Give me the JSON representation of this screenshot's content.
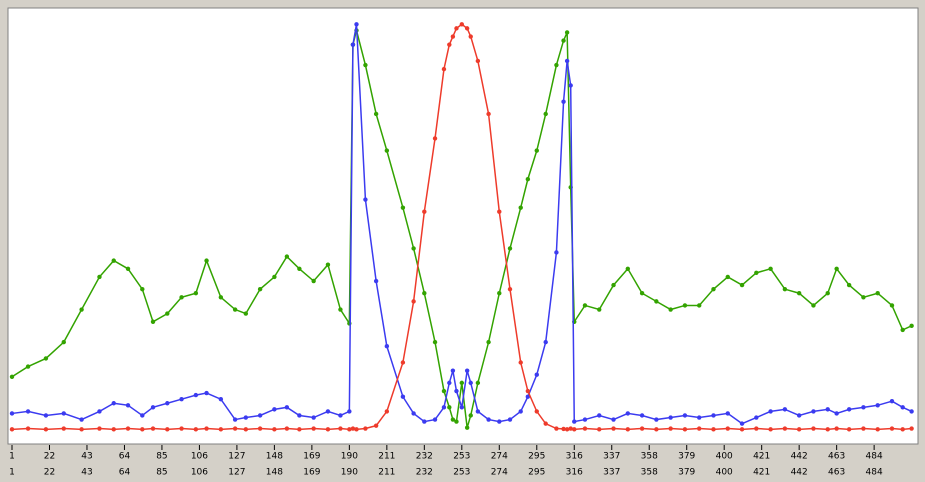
{
  "chart_data": {
    "type": "line",
    "x": [
      1,
      10,
      20,
      30,
      40,
      50,
      58,
      66,
      74,
      80,
      88,
      96,
      104,
      110,
      118,
      126,
      132,
      140,
      148,
      155,
      162,
      170,
      178,
      185,
      190,
      192,
      194,
      199,
      205,
      211,
      220,
      226,
      232,
      238,
      243,
      246,
      248,
      250,
      253,
      256,
      258,
      262,
      268,
      274,
      280,
      286,
      290,
      295,
      300,
      306,
      310,
      312,
      314,
      316,
      322,
      330,
      338,
      346,
      354,
      362,
      370,
      378,
      386,
      394,
      402,
      410,
      418,
      426,
      434,
      442,
      450,
      458,
      463,
      470,
      478,
      486,
      494,
      500,
      505
    ],
    "series": [
      {
        "color": "#33a300",
        "values": [
          13.5,
          16,
          18,
          22,
          30,
          38,
          42,
          40,
          35,
          27,
          29,
          33,
          34,
          42,
          33,
          30,
          29,
          35,
          38,
          43,
          40,
          37,
          41,
          30,
          26.6,
          95,
          98.5,
          90,
          78,
          69,
          55,
          45,
          34,
          22,
          10,
          6,
          3,
          2.5,
          12,
          1,
          4,
          12,
          22,
          34,
          45,
          55,
          62,
          69,
          78,
          90,
          96,
          98,
          60,
          27,
          31,
          30,
          36,
          40,
          34,
          32,
          30,
          31,
          31,
          35,
          38,
          36,
          39,
          40,
          35,
          34,
          31,
          34,
          40,
          36,
          33,
          34,
          31,
          25,
          26
        ]
      },
      {
        "color": "#3b3bf0",
        "values": [
          4.5,
          5,
          4,
          4.5,
          3,
          5,
          7,
          6.5,
          4,
          6,
          7,
          8,
          9,
          9.5,
          8,
          3,
          3.5,
          4,
          5.5,
          6,
          4,
          3.5,
          5,
          4,
          5,
          95,
          100,
          57,
          37,
          21,
          8.6,
          4.5,
          2.5,
          3,
          6,
          12,
          15,
          10,
          6,
          15,
          12,
          5,
          3,
          2.5,
          3,
          5,
          8.6,
          14,
          22,
          44,
          81,
          91,
          85,
          2.5,
          3,
          4,
          3,
          4.5,
          4,
          3,
          3.5,
          4,
          3.5,
          4,
          4.5,
          2,
          3.5,
          5,
          5.5,
          4,
          5,
          5.5,
          4.5,
          5.5,
          6,
          6.5,
          7.5,
          6,
          5
        ]
      },
      {
        "color": "#ee3b2b",
        "values": [
          0.6,
          0.8,
          0.6,
          0.8,
          0.6,
          0.8,
          0.6,
          0.8,
          0.6,
          0.8,
          0.6,
          0.8,
          0.6,
          0.8,
          0.6,
          0.8,
          0.6,
          0.8,
          0.6,
          0.8,
          0.6,
          0.8,
          0.6,
          0.8,
          0.6,
          0.8,
          0.6,
          0.8,
          1.5,
          5,
          17,
          32,
          54,
          72,
          89,
          95,
          97,
          99,
          100,
          99,
          97,
          91,
          78,
          54,
          35,
          17,
          10,
          5,
          2,
          0.8,
          0.7,
          0.6,
          0.8,
          0.6,
          0.8,
          0.6,
          0.8,
          0.6,
          0.8,
          0.6,
          0.8,
          0.6,
          0.8,
          0.6,
          0.8,
          0.6,
          0.8,
          0.6,
          0.8,
          0.6,
          0.8,
          0.6,
          0.8,
          0.6,
          0.8,
          0.6,
          0.8,
          0.6,
          0.8
        ]
      }
    ],
    "xlim": [
      1,
      506
    ],
    "ylim": [
      -3,
      104
    ],
    "xticks": [
      1,
      22,
      43,
      64,
      85,
      106,
      127,
      148,
      169,
      190,
      211,
      232,
      253,
      274,
      295,
      316,
      337,
      358,
      379,
      400,
      421,
      442,
      463,
      484
    ]
  }
}
